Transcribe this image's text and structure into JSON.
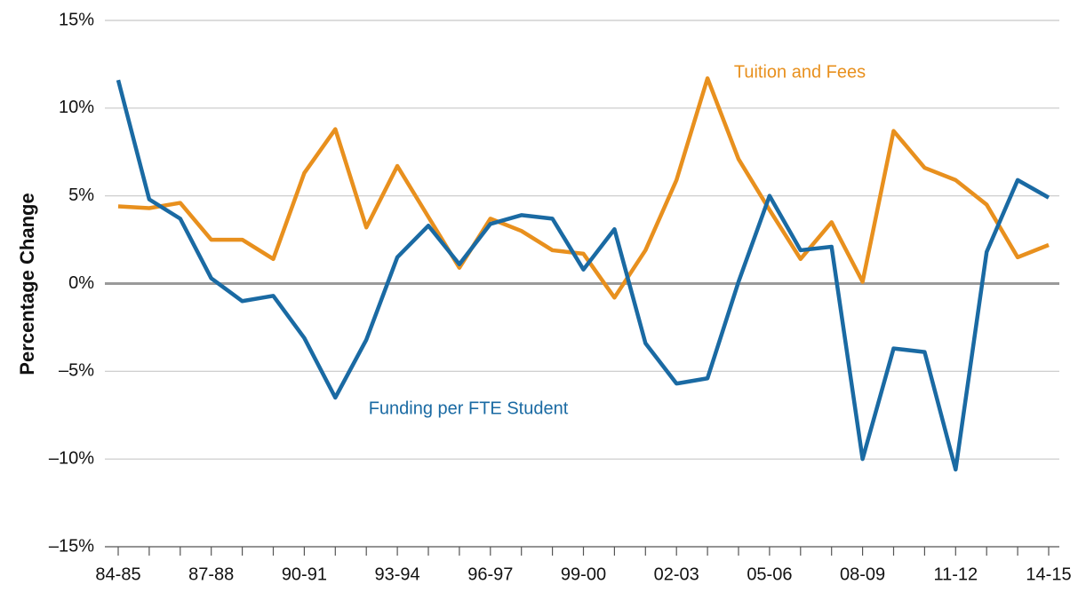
{
  "chart_data": {
    "type": "line",
    "y_label": "Percentage Change",
    "categories": [
      "84-85",
      null,
      null,
      "87-88",
      null,
      null,
      "90-91",
      null,
      null,
      "93-94",
      null,
      null,
      "96-97",
      null,
      null,
      "99-00",
      null,
      null,
      "02-03",
      null,
      null,
      "05-06",
      null,
      null,
      "08-09",
      null,
      null,
      "11-12",
      null,
      null,
      "14-15"
    ],
    "series": [
      {
        "name": "Tuition and Fees",
        "color": "#e8901e",
        "values": [
          4.4,
          4.3,
          4.6,
          2.5,
          2.5,
          1.4,
          6.3,
          8.8,
          3.2,
          6.7,
          3.8,
          0.9,
          3.7,
          3.0,
          1.9,
          1.7,
          -0.8,
          1.9,
          5.9,
          11.7,
          7.1,
          4.2,
          1.4,
          3.5,
          0.1,
          8.7,
          6.6,
          5.9,
          4.5,
          1.5,
          2.2
        ]
      },
      {
        "name": "Funding per FTE Student",
        "color": "#1a6aa3",
        "values": [
          11.6,
          4.8,
          3.7,
          0.3,
          -1.0,
          -0.7,
          -3.1,
          -6.5,
          -3.2,
          1.5,
          3.3,
          1.1,
          3.4,
          3.9,
          3.7,
          0.8,
          3.1,
          -3.4,
          -5.7,
          -5.4,
          0.1,
          5.0,
          1.9,
          2.1,
          -10.0,
          -3.7,
          -3.9,
          -10.6,
          1.8,
          5.9,
          4.9
        ]
      }
    ],
    "ylim": [
      -15,
      15
    ],
    "yticks": [
      {
        "value": 15,
        "label": "15%"
      },
      {
        "value": 10,
        "label": "10%"
      },
      {
        "value": 5,
        "label": "5%"
      },
      {
        "value": 0,
        "label": "0%"
      },
      {
        "value": -5,
        "label": "–5%"
      },
      {
        "value": -10,
        "label": "–10%"
      },
      {
        "value": -15,
        "label": "–15%"
      }
    ],
    "grid": true
  }
}
